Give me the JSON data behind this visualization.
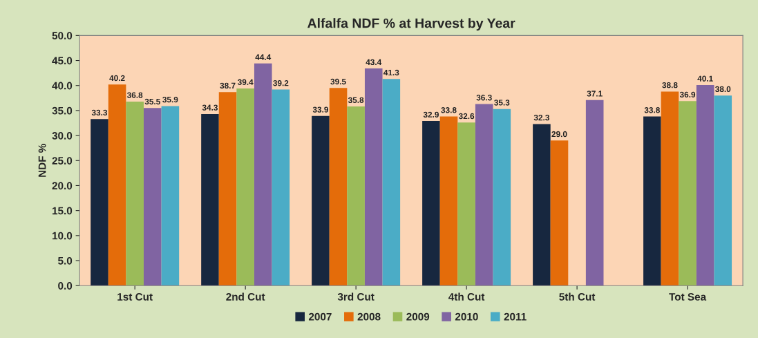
{
  "chart_data": {
    "type": "bar",
    "title": "Alfalfa NDF % at Harvest by Year",
    "ylabel": "NDF %",
    "categories": [
      "1st Cut",
      "2nd Cut",
      "3rd Cut",
      "4th Cut",
      "5th Cut",
      "Tot Sea"
    ],
    "series": [
      {
        "name": "2007",
        "color": "#17273f",
        "values": [
          33.3,
          34.3,
          33.9,
          32.9,
          32.3,
          33.8
        ],
        "value_labels": [
          "33.3",
          "34.3",
          "33.9",
          "32.9",
          "32.3",
          "33.8"
        ]
      },
      {
        "name": "2008",
        "color": "#e46c0a",
        "values": [
          40.2,
          38.7,
          39.5,
          33.8,
          29.0,
          38.8
        ],
        "value_labels": [
          "40.2",
          "38.7",
          "39.5",
          "33.8",
          "29.0",
          "38.8"
        ]
      },
      {
        "name": "2009",
        "color": "#9bbb59",
        "values": [
          36.8,
          39.4,
          35.8,
          32.6,
          null,
          36.9
        ],
        "value_labels": [
          "36.8",
          "39.4",
          "35.8",
          "32.6",
          null,
          "36.9"
        ]
      },
      {
        "name": "2010",
        "color": "#8064a2",
        "values": [
          35.5,
          44.4,
          43.4,
          36.3,
          37.1,
          40.1
        ],
        "value_labels": [
          "35.5",
          "44.4",
          "43.4",
          "36.3",
          "37.1",
          "40.1"
        ]
      },
      {
        "name": "2011",
        "color": "#4bacc6",
        "values": [
          35.9,
          39.2,
          41.3,
          35.3,
          null,
          38.0
        ],
        "value_labels": [
          "35.9",
          "39.2",
          "41.3",
          "35.3",
          null,
          "38.0"
        ]
      }
    ],
    "ylim": [
      0,
      50
    ],
    "yticks": [
      {
        "value": 0,
        "label": "0.0"
      },
      {
        "value": 5,
        "label": "5.0"
      },
      {
        "value": 10,
        "label": "10.0"
      },
      {
        "value": 15,
        "label": "15.0"
      },
      {
        "value": 20,
        "label": "20.0"
      },
      {
        "value": 25,
        "label": "25.0"
      },
      {
        "value": 30,
        "label": "30.0"
      },
      {
        "value": 35,
        "label": "35.0"
      },
      {
        "value": 40,
        "label": "40.0"
      },
      {
        "value": 45,
        "label": "45.0"
      },
      {
        "value": 50,
        "label": "50.0"
      }
    ],
    "legend": "bottom",
    "grid": false
  }
}
